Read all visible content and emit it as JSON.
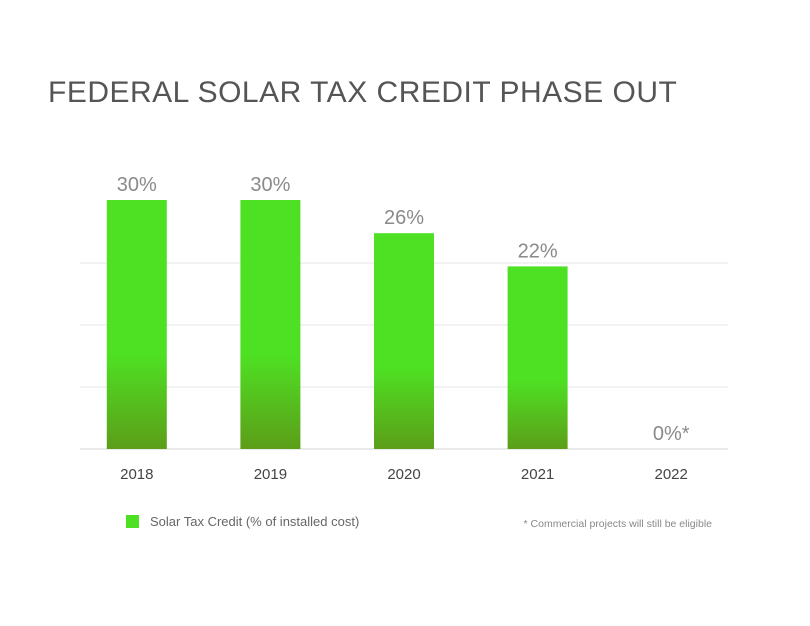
{
  "chart_data": {
    "type": "bar",
    "title": "FEDERAL SOLAR TAX CREDIT PHASE OUT",
    "categories": [
      "2018",
      "2019",
      "2020",
      "2021",
      "2022"
    ],
    "series": [
      {
        "name": "Solar Tax Credit (% of installed cost)",
        "values": [
          30,
          30,
          26,
          22,
          0
        ]
      }
    ],
    "data_labels": [
      "30%",
      "30%",
      "26%",
      "22%",
      "0%*"
    ],
    "ylim": [
      0,
      30
    ],
    "grid": true,
    "legend": "bottom-left",
    "footnote": "* Commercial projects will still be eligible",
    "colors": {
      "bar_top": "#4ee123",
      "bar_bottom": "#5c9e19"
    }
  }
}
